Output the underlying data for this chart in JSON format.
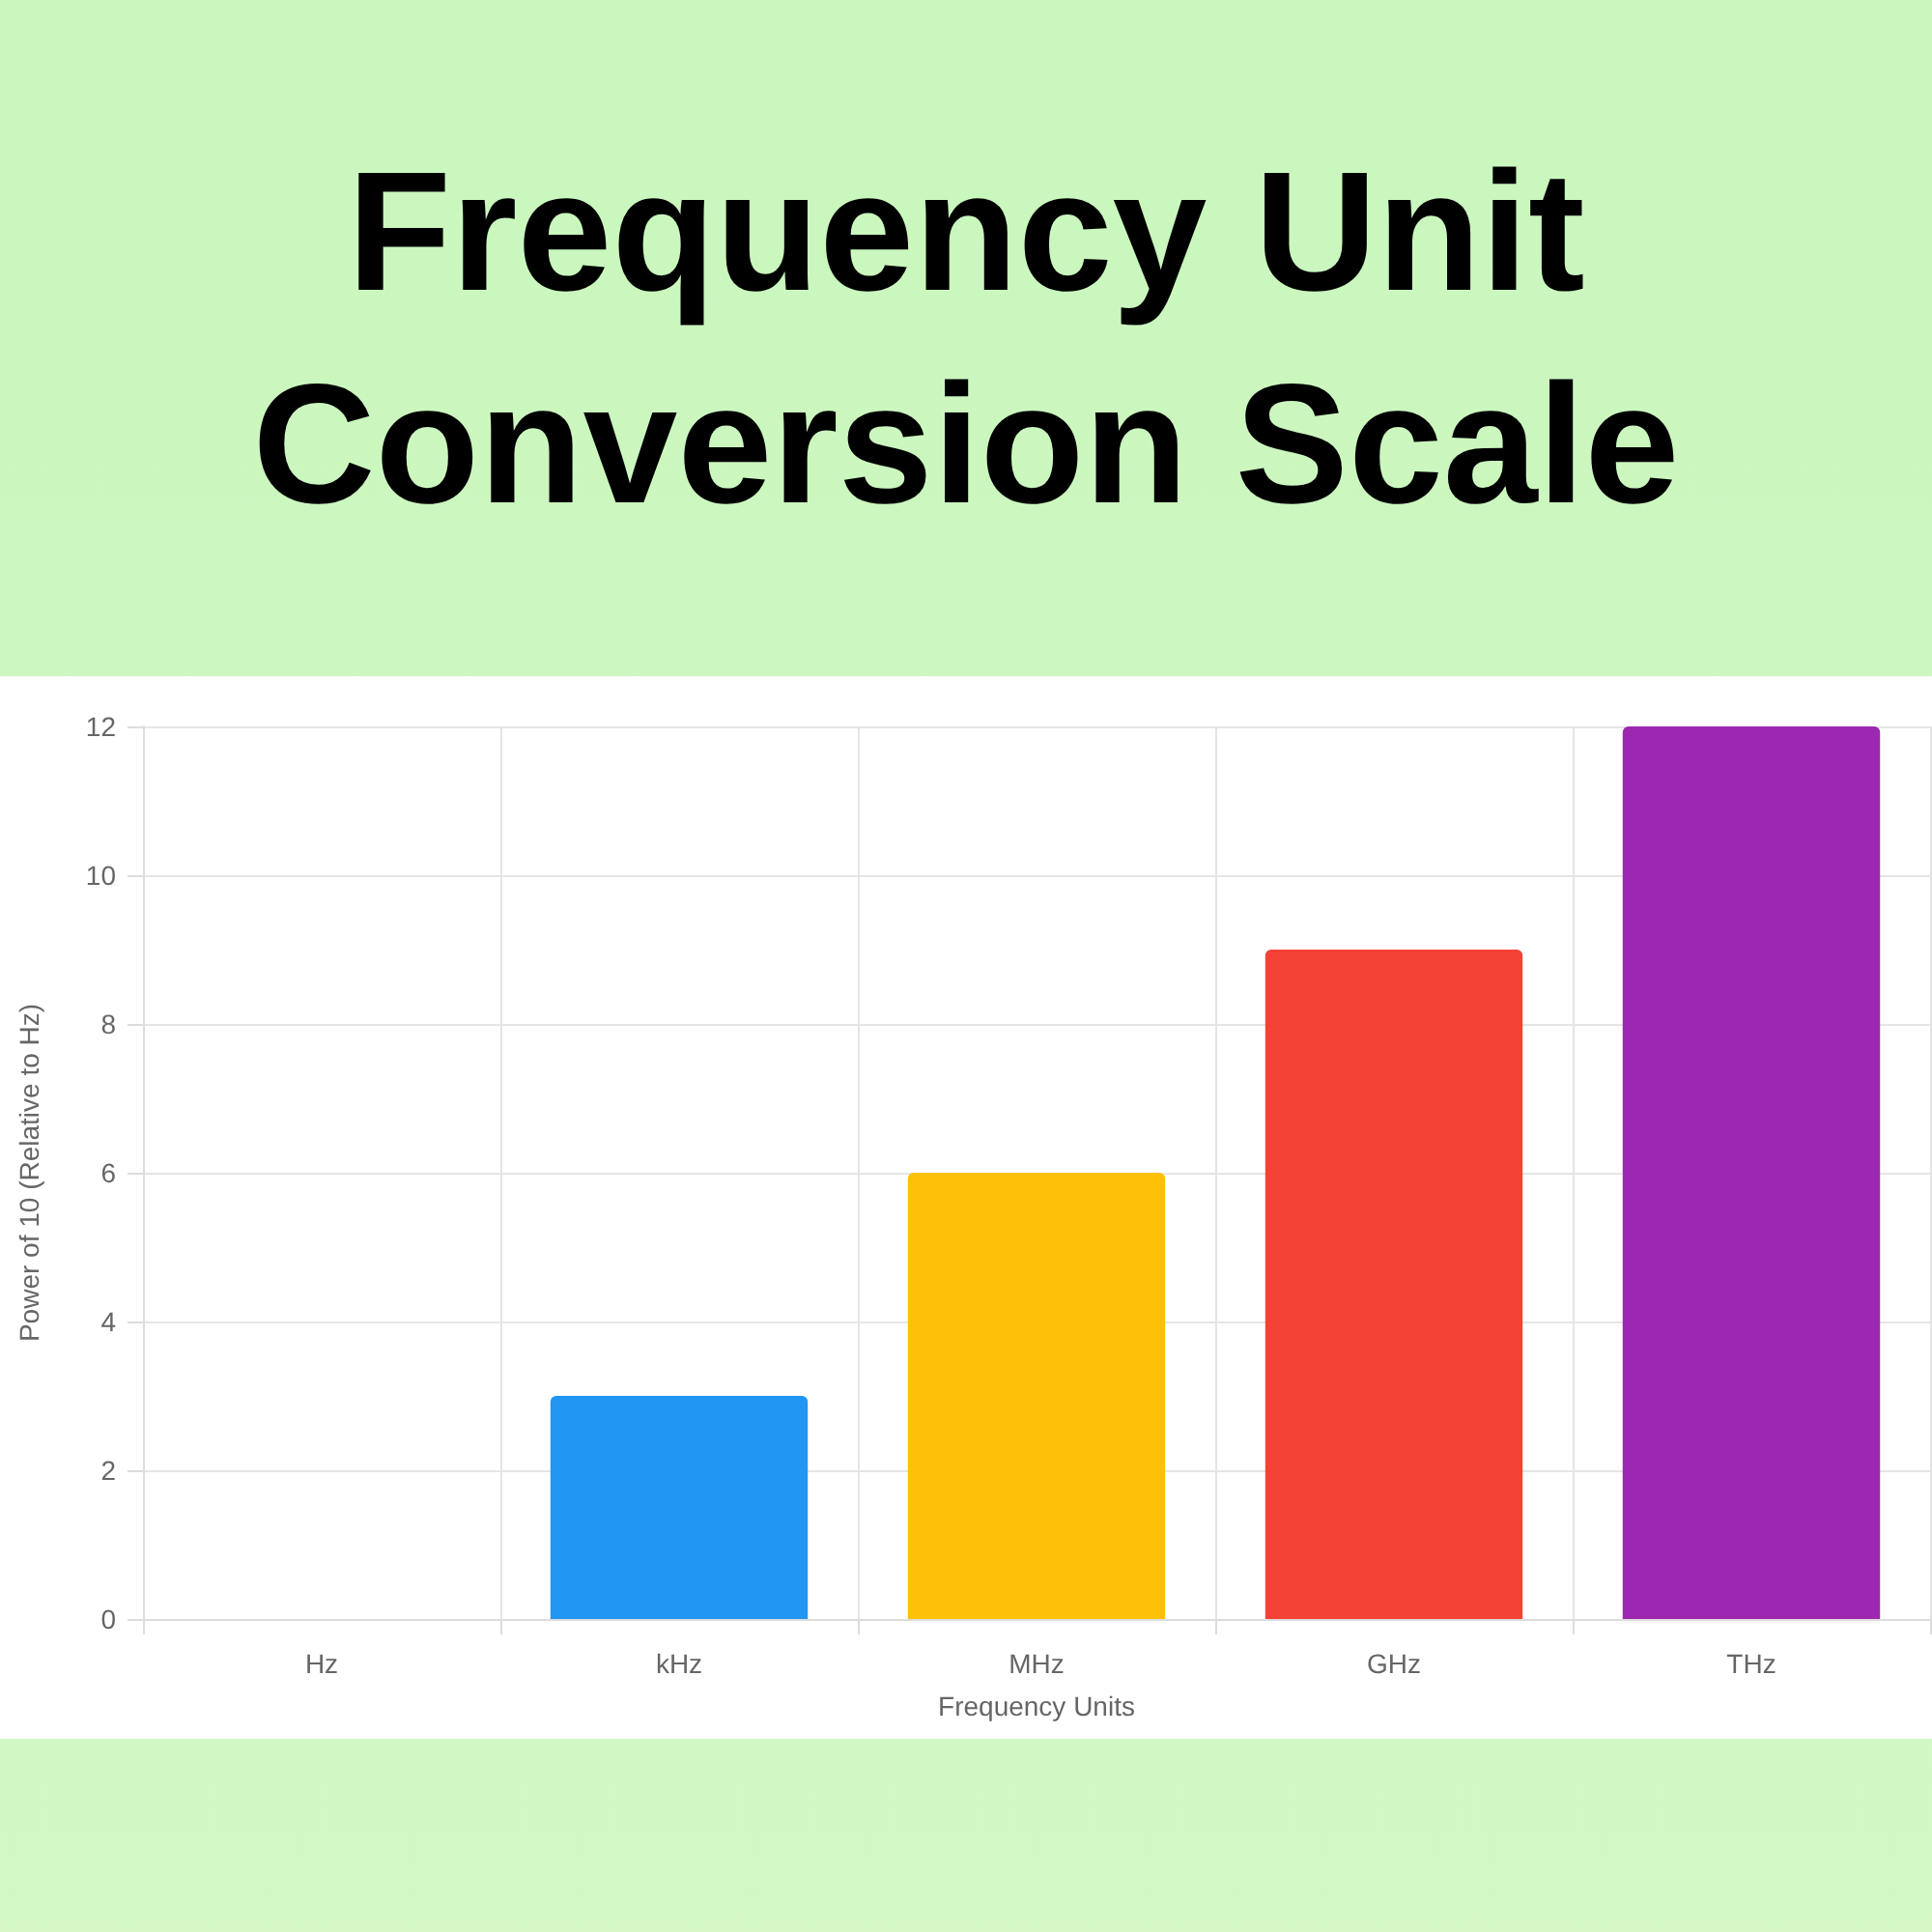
{
  "chart_data": {
    "type": "bar",
    "title": "Frequency Unit Conversion Scale",
    "xlabel": "Frequency Units",
    "ylabel": "Power of 10 (Relative to Hz)",
    "categories": [
      "Hz",
      "kHz",
      "MHz",
      "GHz",
      "THz"
    ],
    "values": [
      0,
      3,
      6,
      9,
      12
    ],
    "colors": [
      "#4caf50",
      "#2196f3",
      "#ffc107",
      "#f44336",
      "#9c27b0"
    ],
    "ylim": [
      0,
      12
    ],
    "yticks": [
      0,
      2,
      4,
      6,
      8,
      10,
      12
    ],
    "grid": true
  }
}
